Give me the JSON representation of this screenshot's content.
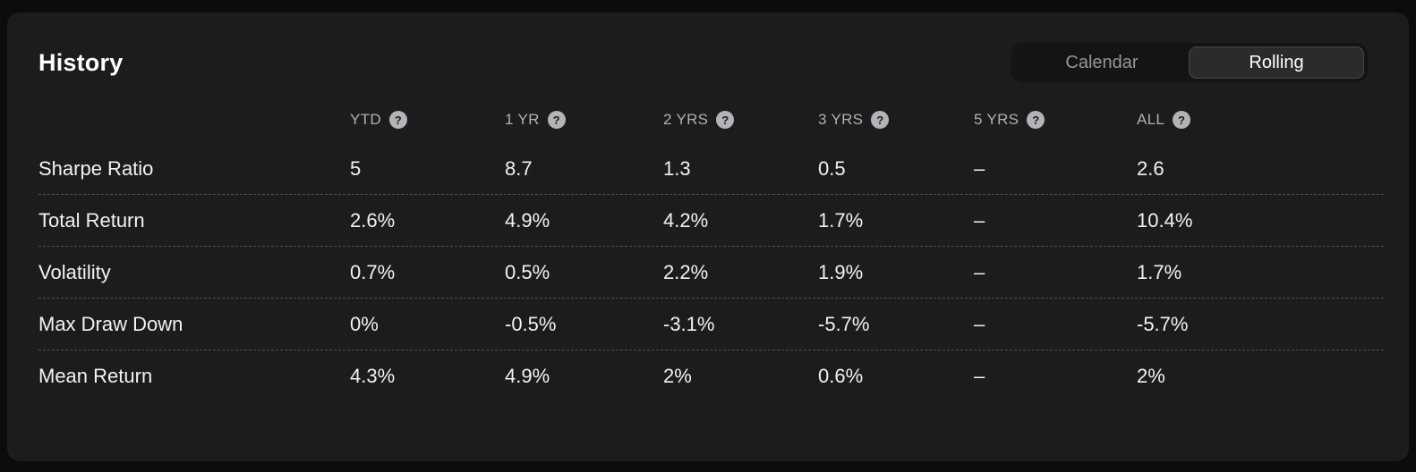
{
  "header": {
    "title": "History",
    "toggle": {
      "calendar_label": "Calendar",
      "rolling_label": "Rolling",
      "selected": "Rolling"
    }
  },
  "table": {
    "help_icon": "?",
    "columns": [
      {
        "label": "YTD"
      },
      {
        "label": "1 YR"
      },
      {
        "label": "2 YRS"
      },
      {
        "label": "3 YRS"
      },
      {
        "label": "5 YRS"
      },
      {
        "label": "ALL"
      }
    ],
    "rows": [
      {
        "label": "Sharpe Ratio",
        "values": [
          "5",
          "8.7",
          "1.3",
          "0.5",
          "–",
          "2.6"
        ]
      },
      {
        "label": "Total Return",
        "values": [
          "2.6%",
          "4.9%",
          "4.2%",
          "1.7%",
          "–",
          "10.4%"
        ]
      },
      {
        "label": "Volatility",
        "values": [
          "0.7%",
          "0.5%",
          "2.2%",
          "1.9%",
          "–",
          "1.7%"
        ]
      },
      {
        "label": "Max Draw Down",
        "values": [
          "0%",
          "-0.5%",
          "-3.1%",
          "-5.7%",
          "–",
          "-5.7%"
        ]
      },
      {
        "label": "Mean Return",
        "values": [
          "4.3%",
          "4.9%",
          "2%",
          "0.6%",
          "–",
          "2%"
        ]
      }
    ]
  },
  "colors": {
    "page_bg": "#0c0c0d",
    "card_bg": "#1c1c1e",
    "toggle_bg": "#141416",
    "selected_pill_bg": "#2b2b2e",
    "selected_pill_border": "#47474b",
    "text_primary": "#f2f2f4",
    "text_muted": "#b0b0b4",
    "separator": "#4e4e52"
  }
}
